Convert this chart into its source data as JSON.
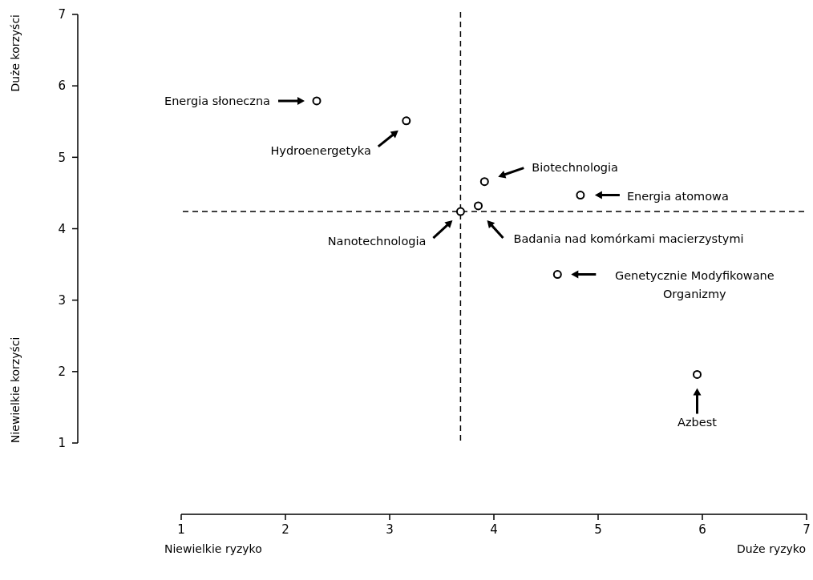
{
  "chart_data": {
    "type": "scatter",
    "x": [
      2.3,
      3.16,
      3.91,
      4.83,
      3.85,
      4.61,
      3.68,
      5.95
    ],
    "values": [
      5.79,
      5.51,
      4.66,
      4.47,
      4.32,
      3.36,
      4.24,
      1.96
    ],
    "color": "#000000",
    "marker": "circle",
    "xlim": [
      1,
      7
    ],
    "ylim": [
      1,
      7
    ],
    "xticks": [
      1,
      2,
      3,
      4,
      5,
      6,
      7
    ],
    "yticks": [
      1,
      2,
      3,
      4,
      5,
      6,
      7
    ],
    "ref_lines": [
      {
        "axis": "x",
        "value": 3.68,
        "line_style": "dashed"
      },
      {
        "axis": "y",
        "value": 4.24,
        "line_style": "dashed"
      }
    ],
    "annotations": [
      "Niewielkie ryzyko",
      "Duże ryzyko",
      "Duże korzyści",
      "Niewielkie korzyści",
      "Energia słoneczna",
      "Hydroenergetyka",
      "Biotechnologia",
      "Energia atomowa",
      "Badania nad komórkami macierzystymi",
      "Genetycznie Modyfikowane Organizmy",
      "Nanotechnologia",
      "Azbest"
    ]
  }
}
